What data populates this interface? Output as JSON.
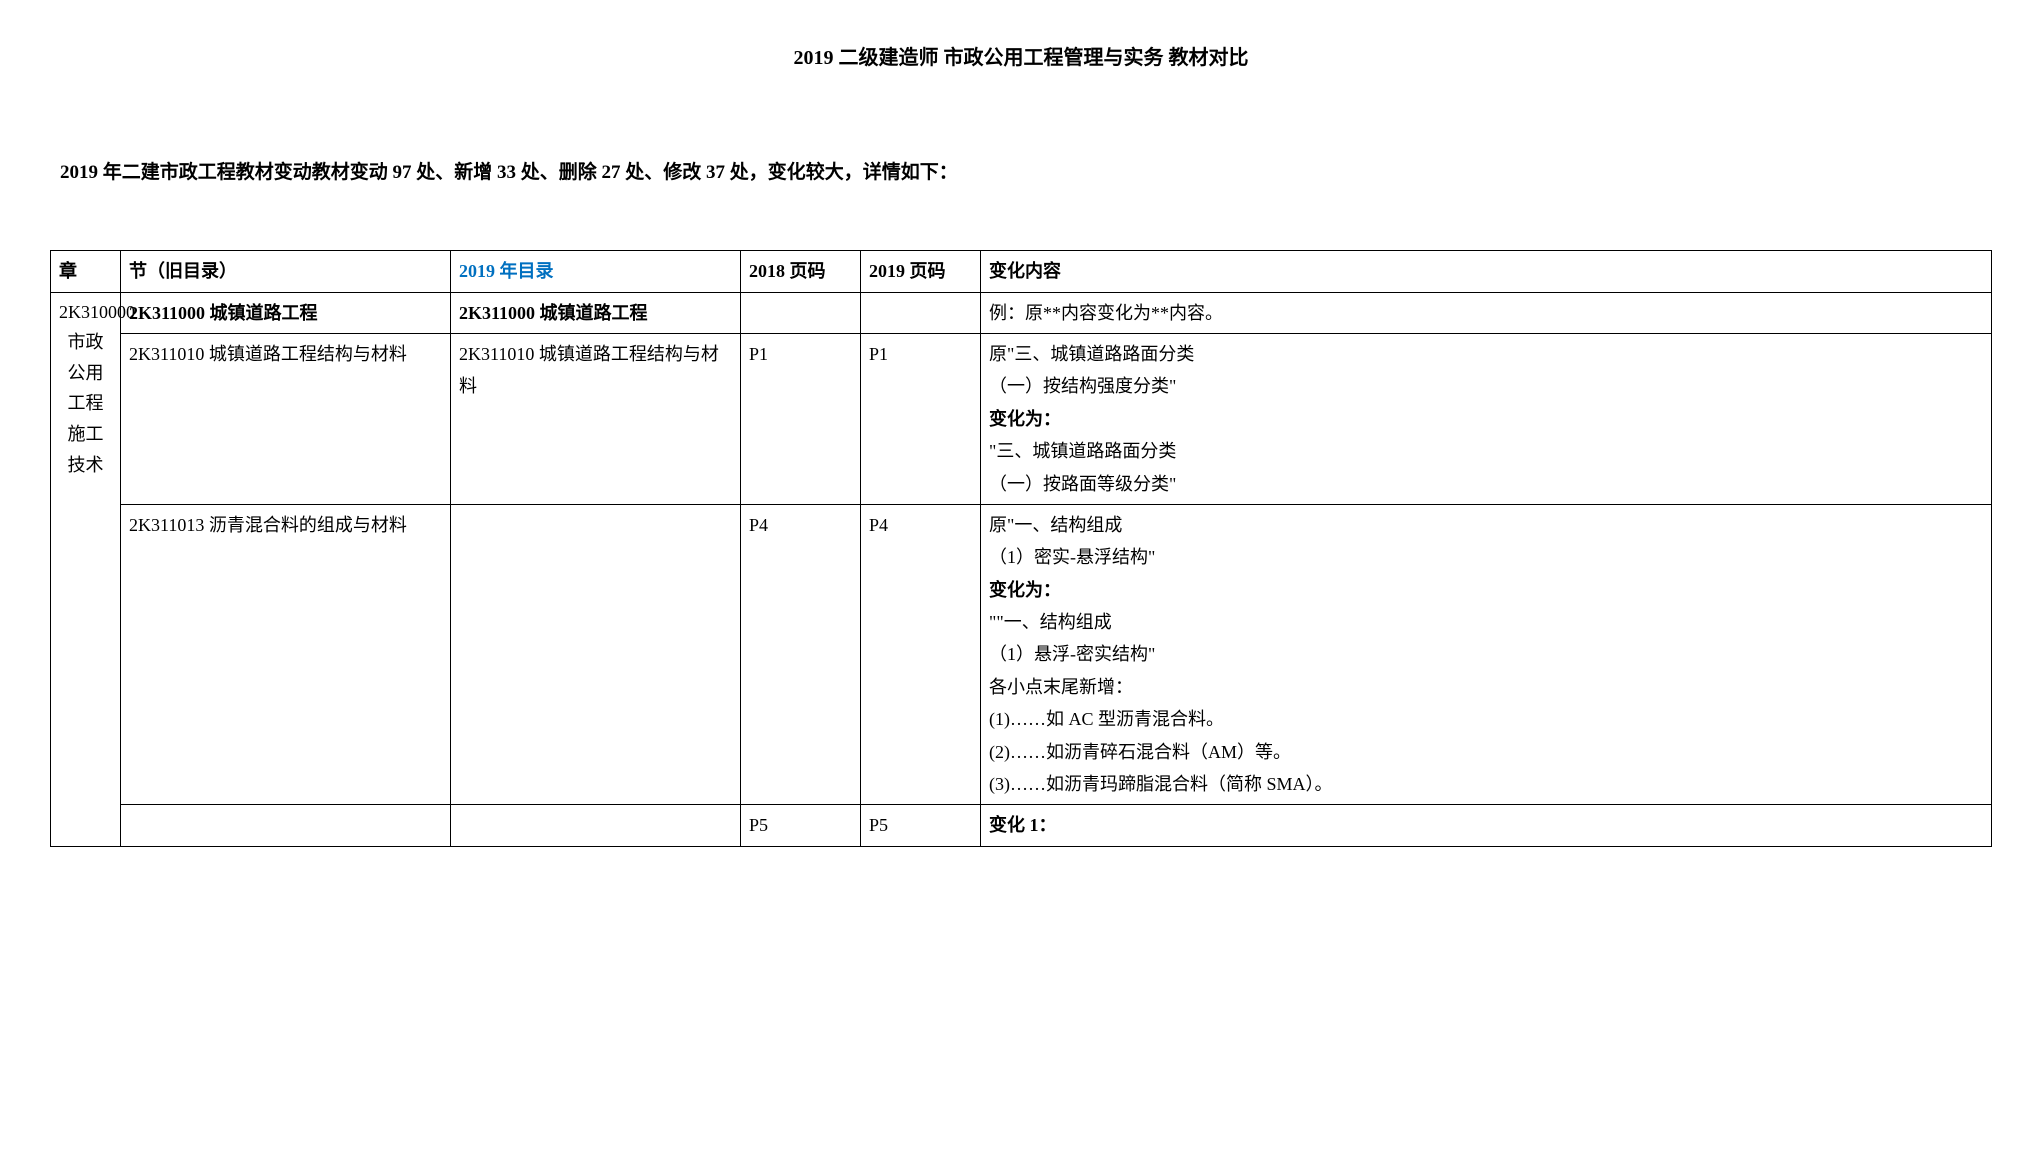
{
  "title": "2019 二级建造师 市政公用工程管理与实务 教材对比",
  "intro": "2019 年二建市政工程教材变动教材变动 97 处、新增 33 处、删除 27 处、修改 37 处，变化较大，详情如下：",
  "columns": {
    "c1": "章",
    "c2": "节（旧目录）",
    "c3": "2019 年目录",
    "c4": "2018 页码",
    "c5": "2019 页码",
    "c6": "变化内容"
  },
  "chapter_code": "2K310000",
  "chapter_name_lines": [
    "市政",
    "公用",
    "工程",
    "施工",
    "技术"
  ],
  "rows": [
    {
      "old_section": "2K311000 城镇道路工程",
      "old_bold": true,
      "new_section": "2K311000 城镇道路工程",
      "new_bold": true,
      "page_2018": "",
      "page_2019": "",
      "change_html": "例：原**内容变化为**内容。"
    },
    {
      "old_section": "2K311010 城镇道路工程结构与材料",
      "new_section": "2K311010 城镇道路工程结构与材料",
      "page_2018": "P1",
      "page_2019": "P1",
      "change_html": "原\"三、城镇道路路面分类<br>（一）按结构强度分类\"<br><b>变化为：</b><br>\"三、城镇道路路面分类<br>（一）按路面等级分类\""
    },
    {
      "old_section": "2K311013 沥青混合料的组成与材料",
      "new_section": "",
      "page_2018": "P4",
      "page_2019": "P4",
      "change_html": "原\"一、结构组成<br>（1）密实-悬浮结构\"<br><b>变化为：</b><br>\"\"一、结构组成<br>（1）悬浮-密实结构\"<br>各小点末尾新增：<br>(1)……如 AC 型沥青混合料。<br>(2)……如沥青碎石混合料（AM）等。<br>(3)……如沥青玛蹄脂混合料（简称 SMA）。"
    },
    {
      "old_section": "",
      "new_section": "",
      "page_2018": "P5",
      "page_2019": "P5",
      "change_html": "<b>变化 1：</b>"
    }
  ]
}
